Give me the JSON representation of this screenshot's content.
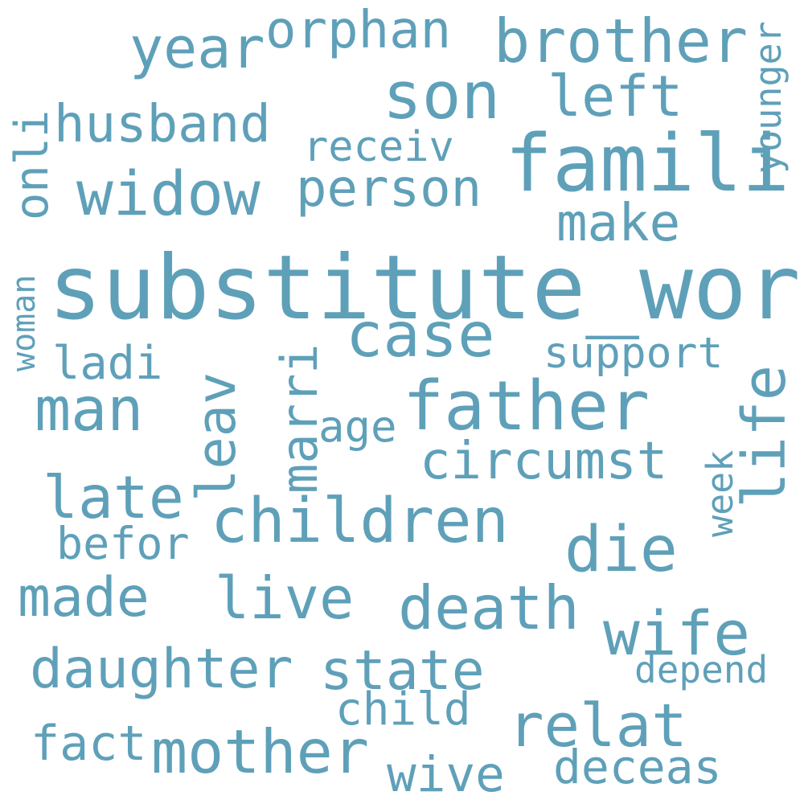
{
  "color": "#5fa0b9",
  "words": {
    "substitute_word": "substitute_word",
    "famili": "famili",
    "son": "son",
    "brother": "brother",
    "orphan": "orphan",
    "year": "year",
    "younger": "younger",
    "husband": "husband",
    "left": "left",
    "onli": "onli",
    "receiv": "receiv",
    "widow": "widow",
    "person": "person",
    "make": "make",
    "case": "case",
    "woman": "woman",
    "marri": "marri",
    "support": "support",
    "ladi": "ladi",
    "leav": "leav",
    "life": "life",
    "man": "man",
    "father": "father",
    "age": "age",
    "circumst": "circumst",
    "week": "week",
    "late": "late",
    "children": "children",
    "die": "die",
    "befor": "befor",
    "made": "made",
    "live": "live",
    "death": "death",
    "wife": "wife",
    "daughter": "daughter",
    "state": "state",
    "depend": "depend",
    "child": "child",
    "relat": "relat",
    "fact": "fact",
    "mother": "mother",
    "wive": "wive",
    "deceas": "deceas"
  }
}
